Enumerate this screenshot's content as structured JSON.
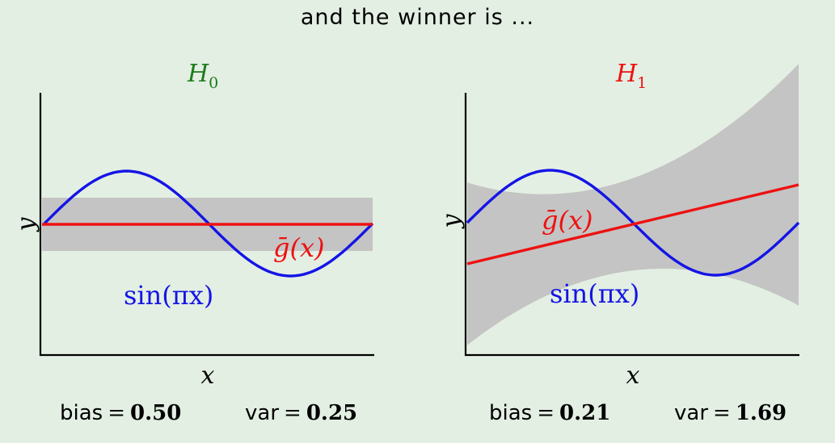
{
  "slide": {
    "title": "and the winner is ..."
  },
  "panels": [
    {
      "id": "h0",
      "hypothesis": {
        "letter": "H",
        "subscript": "0"
      },
      "title_color": "#1d7a1d",
      "curve_colors": {
        "target": "#1414e6",
        "mean": "#ee1111",
        "band": "#c4c4c4"
      },
      "x_label": "x",
      "y_label": "y",
      "target_label": "sin(πx)",
      "mean_label": "ḡ(x)",
      "stats": {
        "bias_label": "bias",
        "bias_eq": "=",
        "bias_value": "0.50",
        "var_label": "var",
        "var_eq": "=",
        "var_value": "0.25"
      }
    },
    {
      "id": "h1",
      "hypothesis": {
        "letter": "H",
        "subscript": "1"
      },
      "title_color": "#ee1111",
      "curve_colors": {
        "target": "#1414e6",
        "mean": "#ee1111",
        "band": "#c4c4c4"
      },
      "x_label": "x",
      "y_label": "y",
      "target_label": "sin(πx)",
      "mean_label": "ḡ(x)",
      "stats": {
        "bias_label": "bias",
        "bias_eq": "=",
        "bias_value": "0.21",
        "var_label": "var",
        "var_eq": "=",
        "var_value": "1.69"
      }
    }
  ]
}
